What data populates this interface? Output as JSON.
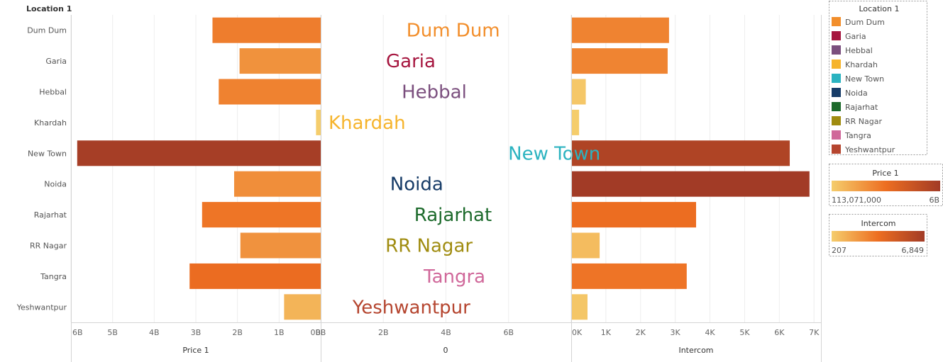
{
  "header": {
    "row_field_label": "Location 1"
  },
  "chart_data": {
    "type": "bar",
    "orientation": "horizontal",
    "categories": [
      "Dum Dum",
      "Garia",
      "Hebbal",
      "Khardah",
      "New Town",
      "Noida",
      "Rajarhat",
      "RR Nagar",
      "Tangra",
      "Yeshwantpur"
    ],
    "series": [
      {
        "name": "Price 1",
        "values": [
          2600000000,
          1950000000,
          2450000000,
          113071000,
          5850000000,
          2080000000,
          2850000000,
          1930000000,
          3150000000,
          880000000
        ]
      },
      {
        "name": "Intercom",
        "values": [
          2800,
          2760,
          400,
          207,
          6280,
          6849,
          3580,
          800,
          3310,
          450
        ]
      }
    ],
    "panels": [
      {
        "field": "Price 1",
        "xlabel": "Price 1",
        "xlim": [
          6000000000,
          0
        ],
        "reversed": true,
        "ticks": [
          "6B",
          "5B",
          "4B",
          "3B",
          "2B",
          "1B",
          "0B"
        ],
        "tick_values": [
          6000000000,
          5000000000,
          4000000000,
          3000000000,
          2000000000,
          1000000000,
          0
        ]
      },
      {
        "field": "0",
        "xlabel": "0",
        "xlim": [
          0,
          8000000000
        ],
        "ticks": [
          "0B",
          "2B",
          "4B",
          "6B"
        ],
        "tick_values": [
          0,
          2000000000,
          4000000000,
          6000000000
        ]
      },
      {
        "field": "Intercom",
        "xlabel": "Intercom",
        "xlim": [
          0,
          7200
        ],
        "ticks": [
          "0K",
          "1K",
          "2K",
          "3K",
          "4K",
          "5K",
          "6K",
          "7K"
        ],
        "tick_values": [
          0,
          1000,
          2000,
          3000,
          4000,
          5000,
          6000,
          7000
        ]
      }
    ],
    "label_colors": {
      "Dum Dum": "#f28e2b",
      "Garia": "#a6163f",
      "Hebbal": "#7b4f7e",
      "Khardah": "#f6b42c",
      "New Town": "#2bb3c0",
      "Noida": "#173c68",
      "Rajarhat": "#1c6a2b",
      "RR Nagar": "#a08c10",
      "Tangra": "#d0689a",
      "Yeshwantpur": "#b5452f"
    }
  },
  "legends": {
    "location": {
      "title": "Location 1",
      "items": [
        "Dum Dum",
        "Garia",
        "Hebbal",
        "Khardah",
        "New Town",
        "Noida",
        "Rajarhat",
        "RR Nagar",
        "Tangra",
        "Yeshwantpur"
      ]
    },
    "price": {
      "title": "Price 1",
      "min_label": "113,071,000",
      "max_label": "6B",
      "min": 113071000,
      "max": 6000000000
    },
    "intercom": {
      "title": "Intercom",
      "min_label": "207",
      "max_label": "6,849",
      "min": 207,
      "max": 6849
    }
  },
  "colors": {
    "ramp_low": "#f5cd6c",
    "ramp_mid": "#ed6e21",
    "ramp_high": "#a23b26",
    "grid": "#eeeeee",
    "divider": "#d4d4d4"
  }
}
